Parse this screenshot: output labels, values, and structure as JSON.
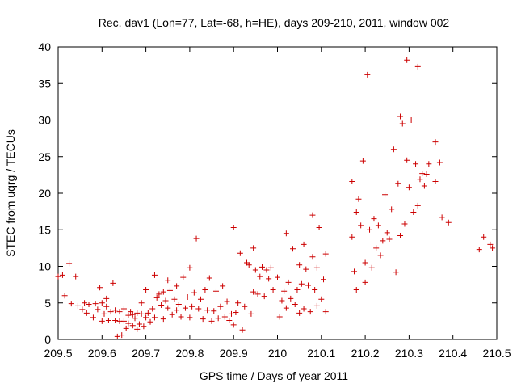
{
  "chart_data": {
    "type": "scatter",
    "title": "Rec. dav1 (Lon=77, Lat=-68, h=HE), days 209-210, 2011, window 002",
    "xlabel": "GPS time / Days of year 2011",
    "ylabel": "STEC from uqrg / TECUs",
    "xlim": [
      209.5,
      210.5
    ],
    "ylim": [
      0,
      40
    ],
    "xticks": [
      209.5,
      209.6,
      209.7,
      209.8,
      209.9,
      210,
      210.1,
      210.2,
      210.3,
      210.4,
      210.5
    ],
    "xtick_labels": [
      "209.5",
      "209.6",
      "209.7",
      "209.8",
      "209.9",
      "210",
      "210.1",
      "210.2",
      "210.3",
      "210.4",
      "210.5"
    ],
    "yticks": [
      0,
      5,
      10,
      15,
      20,
      25,
      30,
      35,
      40
    ],
    "ytick_labels": [
      "0",
      "5",
      "10",
      "15",
      "20",
      "25",
      "30",
      "35",
      "40"
    ],
    "grid": false,
    "legend": "none",
    "marker": "+",
    "color": "#cc0000",
    "points": [
      [
        209.5,
        8.6
      ],
      [
        209.51,
        8.8
      ],
      [
        209.515,
        6.0
      ],
      [
        209.525,
        10.4
      ],
      [
        209.53,
        4.9
      ],
      [
        209.54,
        8.6
      ],
      [
        209.545,
        4.6
      ],
      [
        209.555,
        4.1
      ],
      [
        209.56,
        5.0
      ],
      [
        209.565,
        3.6
      ],
      [
        209.57,
        4.8
      ],
      [
        209.58,
        3.0
      ],
      [
        209.585,
        4.9
      ],
      [
        209.59,
        4.1
      ],
      [
        209.595,
        7.1
      ],
      [
        209.6,
        5.0
      ],
      [
        209.6,
        2.5
      ],
      [
        209.605,
        3.5
      ],
      [
        209.61,
        5.6
      ],
      [
        209.61,
        4.5
      ],
      [
        209.615,
        2.6
      ],
      [
        209.62,
        3.8
      ],
      [
        209.625,
        7.7
      ],
      [
        209.63,
        2.6
      ],
      [
        209.63,
        4.0
      ],
      [
        209.635,
        0.4
      ],
      [
        209.64,
        2.5
      ],
      [
        209.64,
        3.8
      ],
      [
        209.645,
        0.6
      ],
      [
        209.65,
        2.5
      ],
      [
        209.65,
        4.2
      ],
      [
        209.655,
        1.5
      ],
      [
        209.66,
        3.3
      ],
      [
        209.66,
        2.2
      ],
      [
        209.665,
        3.8
      ],
      [
        209.67,
        1.9
      ],
      [
        209.67,
        3.4
      ],
      [
        209.675,
        2.9
      ],
      [
        209.68,
        3.6
      ],
      [
        209.68,
        1.4
      ],
      [
        209.685,
        2.1
      ],
      [
        209.69,
        3.5
      ],
      [
        209.69,
        5.0
      ],
      [
        209.695,
        1.8
      ],
      [
        209.7,
        3.0
      ],
      [
        209.7,
        6.8
      ],
      [
        209.705,
        3.6
      ],
      [
        209.71,
        2.4
      ],
      [
        209.715,
        4.2
      ],
      [
        209.72,
        8.8
      ],
      [
        209.72,
        3.0
      ],
      [
        209.725,
        5.7
      ],
      [
        209.73,
        6.2
      ],
      [
        209.735,
        4.7
      ],
      [
        209.74,
        2.8
      ],
      [
        209.74,
        6.5
      ],
      [
        209.745,
        5.3
      ],
      [
        209.75,
        8.1
      ],
      [
        209.75,
        4.3
      ],
      [
        209.755,
        6.7
      ],
      [
        209.76,
        3.4
      ],
      [
        209.765,
        5.5
      ],
      [
        209.77,
        4.0
      ],
      [
        209.77,
        7.3
      ],
      [
        209.775,
        4.8
      ],
      [
        209.78,
        3.1
      ],
      [
        209.785,
        8.5
      ],
      [
        209.79,
        4.3
      ],
      [
        209.795,
        5.8
      ],
      [
        209.8,
        9.8
      ],
      [
        209.8,
        3.0
      ],
      [
        209.805,
        4.5
      ],
      [
        209.81,
        6.4
      ],
      [
        209.815,
        13.8
      ],
      [
        209.82,
        4.2
      ],
      [
        209.825,
        5.5
      ],
      [
        209.83,
        2.8
      ],
      [
        209.835,
        6.8
      ],
      [
        209.84,
        4.0
      ],
      [
        209.845,
        8.4
      ],
      [
        209.85,
        2.5
      ],
      [
        209.855,
        3.9
      ],
      [
        209.86,
        6.6
      ],
      [
        209.865,
        2.9
      ],
      [
        209.87,
        4.5
      ],
      [
        209.875,
        7.3
      ],
      [
        209.88,
        3.1
      ],
      [
        209.885,
        5.2
      ],
      [
        209.89,
        2.6
      ],
      [
        209.895,
        3.5
      ],
      [
        209.9,
        15.3
      ],
      [
        209.9,
        2.0
      ],
      [
        209.905,
        3.7
      ],
      [
        209.91,
        5.0
      ],
      [
        209.915,
        11.8
      ],
      [
        209.92,
        1.3
      ],
      [
        209.925,
        4.5
      ],
      [
        209.93,
        10.5
      ],
      [
        209.935,
        10.2
      ],
      [
        209.94,
        3.5
      ],
      [
        209.945,
        6.5
      ],
      [
        209.945,
        12.5
      ],
      [
        209.95,
        9.5
      ],
      [
        209.955,
        6.2
      ],
      [
        209.96,
        8.6
      ],
      [
        209.965,
        9.9
      ],
      [
        209.97,
        5.9
      ],
      [
        209.975,
        9.5
      ],
      [
        209.98,
        8.3
      ],
      [
        209.985,
        9.8
      ],
      [
        209.99,
        6.8
      ],
      [
        210.0,
        8.5
      ],
      [
        210.005,
        3.1
      ],
      [
        210.01,
        5.3
      ],
      [
        210.015,
        6.6
      ],
      [
        210.02,
        14.5
      ],
      [
        210.02,
        4.3
      ],
      [
        210.025,
        7.8
      ],
      [
        210.03,
        5.6
      ],
      [
        210.035,
        12.4
      ],
      [
        210.04,
        4.8
      ],
      [
        210.045,
        6.8
      ],
      [
        210.05,
        10.2
      ],
      [
        210.05,
        3.6
      ],
      [
        210.055,
        7.6
      ],
      [
        210.06,
        13.0
      ],
      [
        210.06,
        4.2
      ],
      [
        210.065,
        9.6
      ],
      [
        210.07,
        7.4
      ],
      [
        210.075,
        3.8
      ],
      [
        210.08,
        17.0
      ],
      [
        210.08,
        11.3
      ],
      [
        210.085,
        6.8
      ],
      [
        210.09,
        9.8
      ],
      [
        210.09,
        4.6
      ],
      [
        210.095,
        15.3
      ],
      [
        210.1,
        5.5
      ],
      [
        210.105,
        8.2
      ],
      [
        210.11,
        11.7
      ],
      [
        210.11,
        3.8
      ],
      [
        210.17,
        21.6
      ],
      [
        210.17,
        14.0
      ],
      [
        210.175,
        9.3
      ],
      [
        210.18,
        17.4
      ],
      [
        210.18,
        6.8
      ],
      [
        210.185,
        19.2
      ],
      [
        210.19,
        15.6
      ],
      [
        210.195,
        24.4
      ],
      [
        210.2,
        10.5
      ],
      [
        210.2,
        7.8
      ],
      [
        210.205,
        36.2
      ],
      [
        210.21,
        15.0
      ],
      [
        210.215,
        9.8
      ],
      [
        210.22,
        16.5
      ],
      [
        210.225,
        12.5
      ],
      [
        210.23,
        15.6
      ],
      [
        210.235,
        11.5
      ],
      [
        210.24,
        13.5
      ],
      [
        210.245,
        19.8
      ],
      [
        210.25,
        14.6
      ],
      [
        210.255,
        13.7
      ],
      [
        210.26,
        17.8
      ],
      [
        210.265,
        26.0
      ],
      [
        210.27,
        9.2
      ],
      [
        210.275,
        21.3
      ],
      [
        210.28,
        30.5
      ],
      [
        210.28,
        14.2
      ],
      [
        210.285,
        29.5
      ],
      [
        210.29,
        15.8
      ],
      [
        210.295,
        38.2
      ],
      [
        210.295,
        24.5
      ],
      [
        210.3,
        20.8
      ],
      [
        210.305,
        30.0
      ],
      [
        210.31,
        17.4
      ],
      [
        210.315,
        24.0
      ],
      [
        210.32,
        37.3
      ],
      [
        210.32,
        18.3
      ],
      [
        210.325,
        21.9
      ],
      [
        210.33,
        22.7
      ],
      [
        210.335,
        21.0
      ],
      [
        210.34,
        22.6
      ],
      [
        210.345,
        24.0
      ],
      [
        210.36,
        27.0
      ],
      [
        210.36,
        21.6
      ],
      [
        210.37,
        24.2
      ],
      [
        210.375,
        16.7
      ],
      [
        210.39,
        16.0
      ],
      [
        210.46,
        12.3
      ],
      [
        210.47,
        14.0
      ],
      [
        210.485,
        13.0
      ],
      [
        210.49,
        12.5
      ]
    ]
  }
}
